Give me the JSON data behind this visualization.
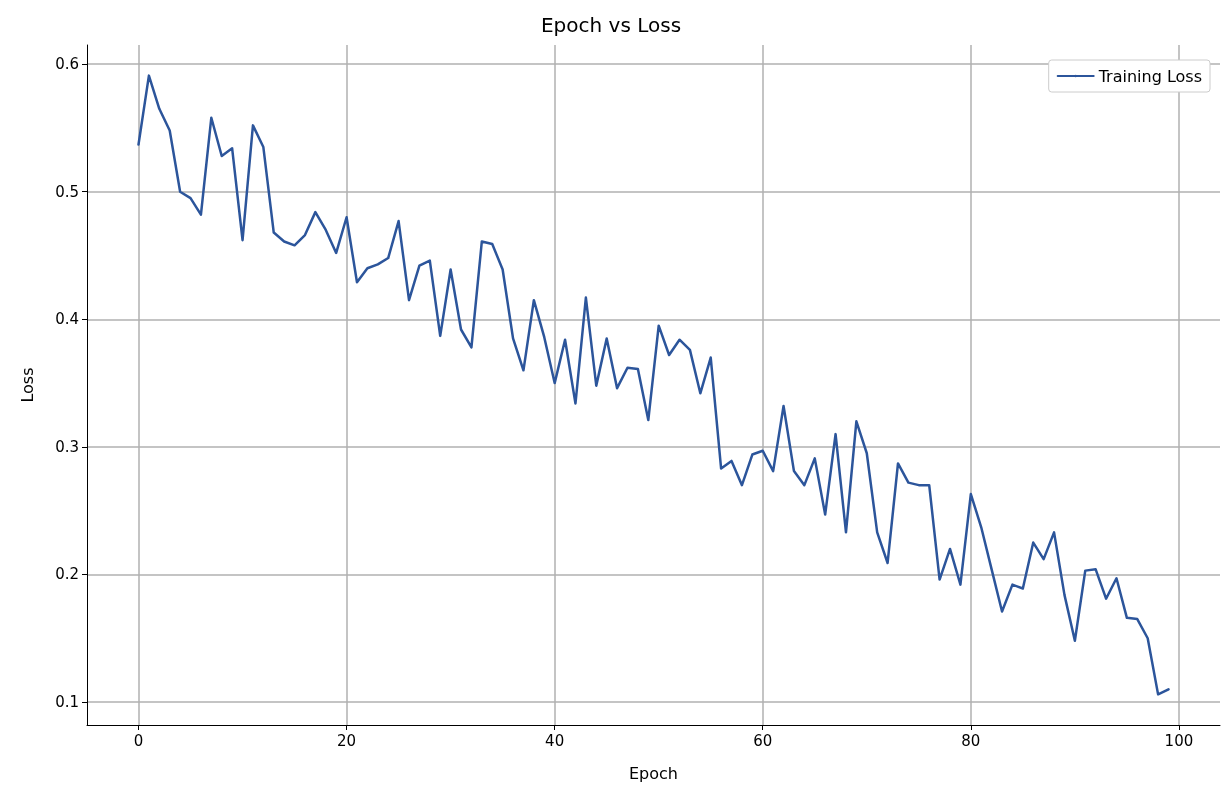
{
  "chart_data": {
    "type": "line",
    "title": "Epoch vs Loss",
    "xlabel": "Epoch",
    "ylabel": "Loss",
    "x": [
      0,
      1,
      2,
      3,
      4,
      5,
      6,
      7,
      8,
      9,
      10,
      11,
      12,
      13,
      14,
      15,
      16,
      17,
      18,
      19,
      20,
      21,
      22,
      23,
      24,
      25,
      26,
      27,
      28,
      29,
      30,
      31,
      32,
      33,
      34,
      35,
      36,
      37,
      38,
      39,
      40,
      41,
      42,
      43,
      44,
      45,
      46,
      47,
      48,
      49,
      50,
      51,
      52,
      53,
      54,
      55,
      56,
      57,
      58,
      59,
      60,
      61,
      62,
      63,
      64,
      65,
      66,
      67,
      68,
      69,
      70,
      71,
      72,
      73,
      74,
      75,
      76,
      77,
      78,
      79,
      80,
      81,
      82,
      83,
      84,
      85,
      86,
      87,
      88,
      89,
      90,
      91,
      92,
      93,
      94,
      95,
      96,
      97,
      98,
      99
    ],
    "series": [
      {
        "name": "Training Loss",
        "color": "#2c559b",
        "values": [
          0.537,
          0.591,
          0.565,
          0.548,
          0.5,
          0.495,
          0.482,
          0.558,
          0.528,
          0.534,
          0.462,
          0.552,
          0.535,
          0.468,
          0.461,
          0.458,
          0.466,
          0.484,
          0.47,
          0.452,
          0.48,
          0.429,
          0.44,
          0.443,
          0.448,
          0.477,
          0.415,
          0.442,
          0.446,
          0.387,
          0.439,
          0.392,
          0.378,
          0.461,
          0.459,
          0.439,
          0.385,
          0.36,
          0.415,
          0.386,
          0.35,
          0.384,
          0.334,
          0.417,
          0.348,
          0.385,
          0.346,
          0.362,
          0.361,
          0.321,
          0.395,
          0.372,
          0.384,
          0.376,
          0.342,
          0.37,
          0.283,
          0.289,
          0.27,
          0.294,
          0.297,
          0.281,
          0.332,
          0.281,
          0.27,
          0.291,
          0.247,
          0.31,
          0.233,
          0.32,
          0.295,
          0.233,
          0.209,
          0.287,
          0.272,
          0.27,
          0.27,
          0.196,
          0.22,
          0.192,
          0.263,
          0.237,
          0.204,
          0.171,
          0.192,
          0.189,
          0.225,
          0.212,
          0.233,
          0.184,
          0.148,
          0.203,
          0.204,
          0.181,
          0.197,
          0.166,
          0.165,
          0.15,
          0.106,
          0.11
        ]
      }
    ],
    "xlim": [
      -4.95,
      103.95
    ],
    "xticks": [
      0,
      20,
      40,
      60,
      80,
      100
    ],
    "ylim": [
      0.082,
      0.615
    ],
    "yticks": [
      0.1,
      0.2,
      0.3,
      0.4,
      0.5,
      0.6
    ],
    "grid": true,
    "legend": "top right",
    "marker": "none",
    "line_style": "solid"
  }
}
